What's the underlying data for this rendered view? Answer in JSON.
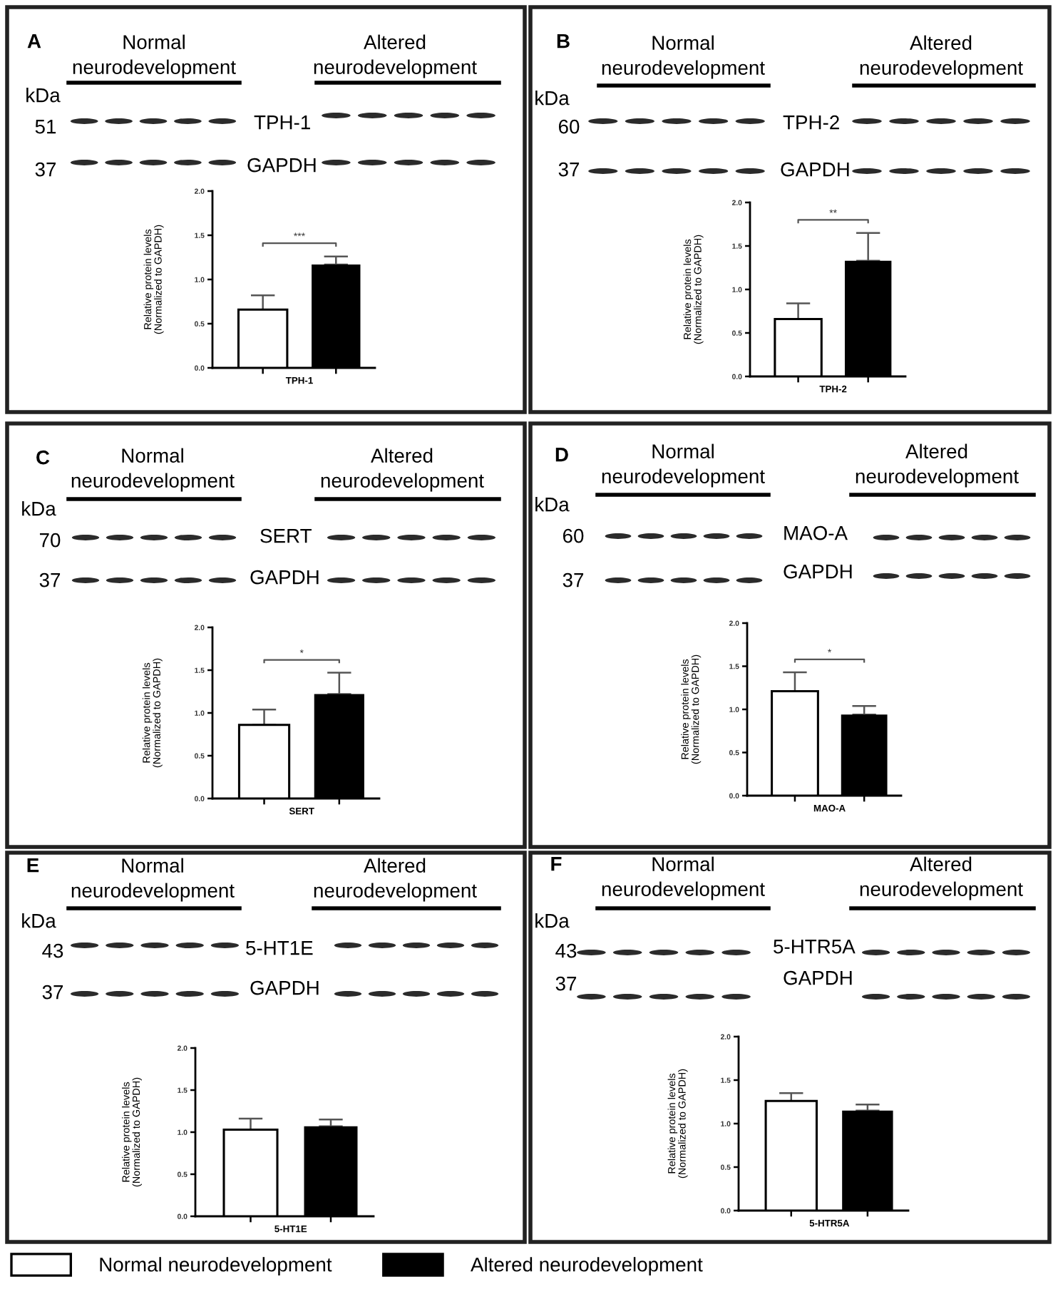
{
  "chart_data": [
    {
      "type": "bar",
      "categories": [
        "TPH-1"
      ],
      "ylabel": "Relative protein levels\n(Normalized to GAPDH)",
      "ylim": [
        0,
        2
      ],
      "yticks": [
        {
          "value": 0,
          "label": "0.0"
        },
        {
          "value": 0.5,
          "label": "0.5"
        },
        {
          "value": 1,
          "label": "1.0"
        },
        {
          "value": 1.5,
          "label": "1.5"
        },
        {
          "value": 2,
          "label": "2.0"
        }
      ],
      "series": [
        {
          "color": "#ffffff",
          "values": [
            0.66
          ],
          "errors": [
            [
              0.66,
              0.82
            ]
          ]
        },
        {
          "color": "#000000",
          "values": [
            1.17
          ],
          "errors": [
            [
              1.17,
              1.26
            ]
          ]
        }
      ],
      "annotations": [
        "A",
        "Normal\nneurodevelopment",
        "Altered\nneurodevelopment",
        "kDa",
        "51",
        "TPH-1",
        "37",
        "GAPDH",
        "***"
      ]
    },
    {
      "type": "bar",
      "categories": [
        "TPH-2"
      ],
      "ylabel": "Relative protein levels\n(Normalized to GAPDH)",
      "ylim": [
        0,
        2
      ],
      "yticks": [
        {
          "value": 0,
          "label": "0.0"
        },
        {
          "value": 0.5,
          "label": "0.5"
        },
        {
          "value": 1,
          "label": "1.0"
        },
        {
          "value": 1.5,
          "label": "1.5"
        },
        {
          "value": 2,
          "label": "2.0"
        }
      ],
      "series": [
        {
          "color": "#ffffff",
          "values": [
            0.66
          ],
          "errors": [
            [
              0.66,
              0.84
            ]
          ]
        },
        {
          "color": "#000000",
          "values": [
            1.33
          ],
          "errors": [
            [
              1.33,
              1.65
            ]
          ]
        }
      ],
      "annotations": [
        "B",
        "Normal\nneurodevelopment",
        "Altered\nneurodevelopment",
        "kDa",
        "60",
        "TPH-2",
        "37",
        "GAPDH",
        "**"
      ]
    },
    {
      "type": "bar",
      "categories": [
        "SERT"
      ],
      "ylabel": "Relative protein levels\n(Normalized to GAPDH)",
      "ylim": [
        0,
        2
      ],
      "yticks": [
        {
          "value": 0,
          "label": "0.0"
        },
        {
          "value": 0.5,
          "label": "0.5"
        },
        {
          "value": 1,
          "label": "1.0"
        },
        {
          "value": 1.5,
          "label": "1.5"
        },
        {
          "value": 2,
          "label": "2.0"
        }
      ],
      "series": [
        {
          "color": "#ffffff",
          "values": [
            0.86
          ],
          "errors": [
            [
              0.86,
              1.04
            ]
          ]
        },
        {
          "color": "#000000",
          "values": [
            1.22
          ],
          "errors": [
            [
              1.22,
              1.47
            ]
          ]
        }
      ],
      "annotations": [
        "C",
        "Normal\nneurodevelopment",
        "Altered\nneurodevelopment",
        "kDa",
        "70",
        "SERT",
        "37",
        "GAPDH",
        "*"
      ]
    },
    {
      "type": "bar",
      "categories": [
        "MAO-A"
      ],
      "ylabel": "Relative protein levels\n(Normalized to GAPDH)",
      "ylim": [
        0,
        2
      ],
      "yticks": [
        {
          "value": 0,
          "label": "0.0"
        },
        {
          "value": 0.5,
          "label": "0.5"
        },
        {
          "value": 1,
          "label": "1.0"
        },
        {
          "value": 1.5,
          "label": "1.5"
        },
        {
          "value": 2,
          "label": "2.0"
        }
      ],
      "series": [
        {
          "color": "#ffffff",
          "values": [
            1.21
          ],
          "errors": [
            [
              1.21,
              1.43
            ]
          ]
        },
        {
          "color": "#000000",
          "values": [
            0.94
          ],
          "errors": [
            [
              0.94,
              1.04
            ]
          ]
        }
      ],
      "annotations": [
        "D",
        "Normal\nneurodevelopment",
        "Altered\nneurodevelopment",
        "kDa",
        "60",
        "MAO-A",
        "37",
        "GAPDH",
        "*"
      ]
    },
    {
      "type": "bar",
      "categories": [
        "5-HT1E"
      ],
      "ylabel": "Relative protein levels\n(Normalized to GAPDH)",
      "ylim": [
        0,
        2
      ],
      "yticks": [
        {
          "value": 0,
          "label": "0.0"
        },
        {
          "value": 0.5,
          "label": "0.5"
        },
        {
          "value": 1,
          "label": "1.0"
        },
        {
          "value": 1.5,
          "label": "1.5"
        },
        {
          "value": 2,
          "label": "2.0"
        }
      ],
      "series": [
        {
          "name": "Normal neurodevelopment",
          "color": "#ffffff",
          "values": [
            1.03
          ],
          "errors": [
            [
              1.03,
              1.16
            ]
          ]
        },
        {
          "name": "Altered neurodevelopment",
          "color": "#000000",
          "values": [
            1.07
          ],
          "errors": [
            [
              1.07,
              1.15
            ]
          ]
        }
      ],
      "annotations": [
        "E",
        "Normal\nneurodevelopment",
        "Altered\nneurodevelopment",
        "kDa",
        "43",
        "5-HT1E",
        "37",
        "GAPDH"
      ],
      "legend": "bottom"
    },
    {
      "type": "bar",
      "categories": [
        "5-HTR5A"
      ],
      "ylabel": "Relative protein levels\n(Normalized to GAPDH)",
      "ylim": [
        0,
        2
      ],
      "yticks": [
        {
          "value": 0,
          "label": "0.0"
        },
        {
          "value": 0.5,
          "label": "0.5"
        },
        {
          "value": 1,
          "label": "1.0"
        },
        {
          "value": 1.5,
          "label": "1.5"
        },
        {
          "value": 2,
          "label": "2.0"
        }
      ],
      "series": [
        {
          "color": "#ffffff",
          "values": [
            1.26
          ],
          "errors": [
            [
              1.26,
              1.35
            ]
          ]
        },
        {
          "color": "#000000",
          "values": [
            1.15
          ],
          "errors": [
            [
              1.15,
              1.22
            ]
          ]
        }
      ],
      "annotations": [
        "F",
        "Normal\nneurodevelopment",
        "Altered\nneurodevelopment",
        "kDa",
        "43",
        "5-HTR5A",
        "37",
        "GAPDH"
      ]
    }
  ]
}
